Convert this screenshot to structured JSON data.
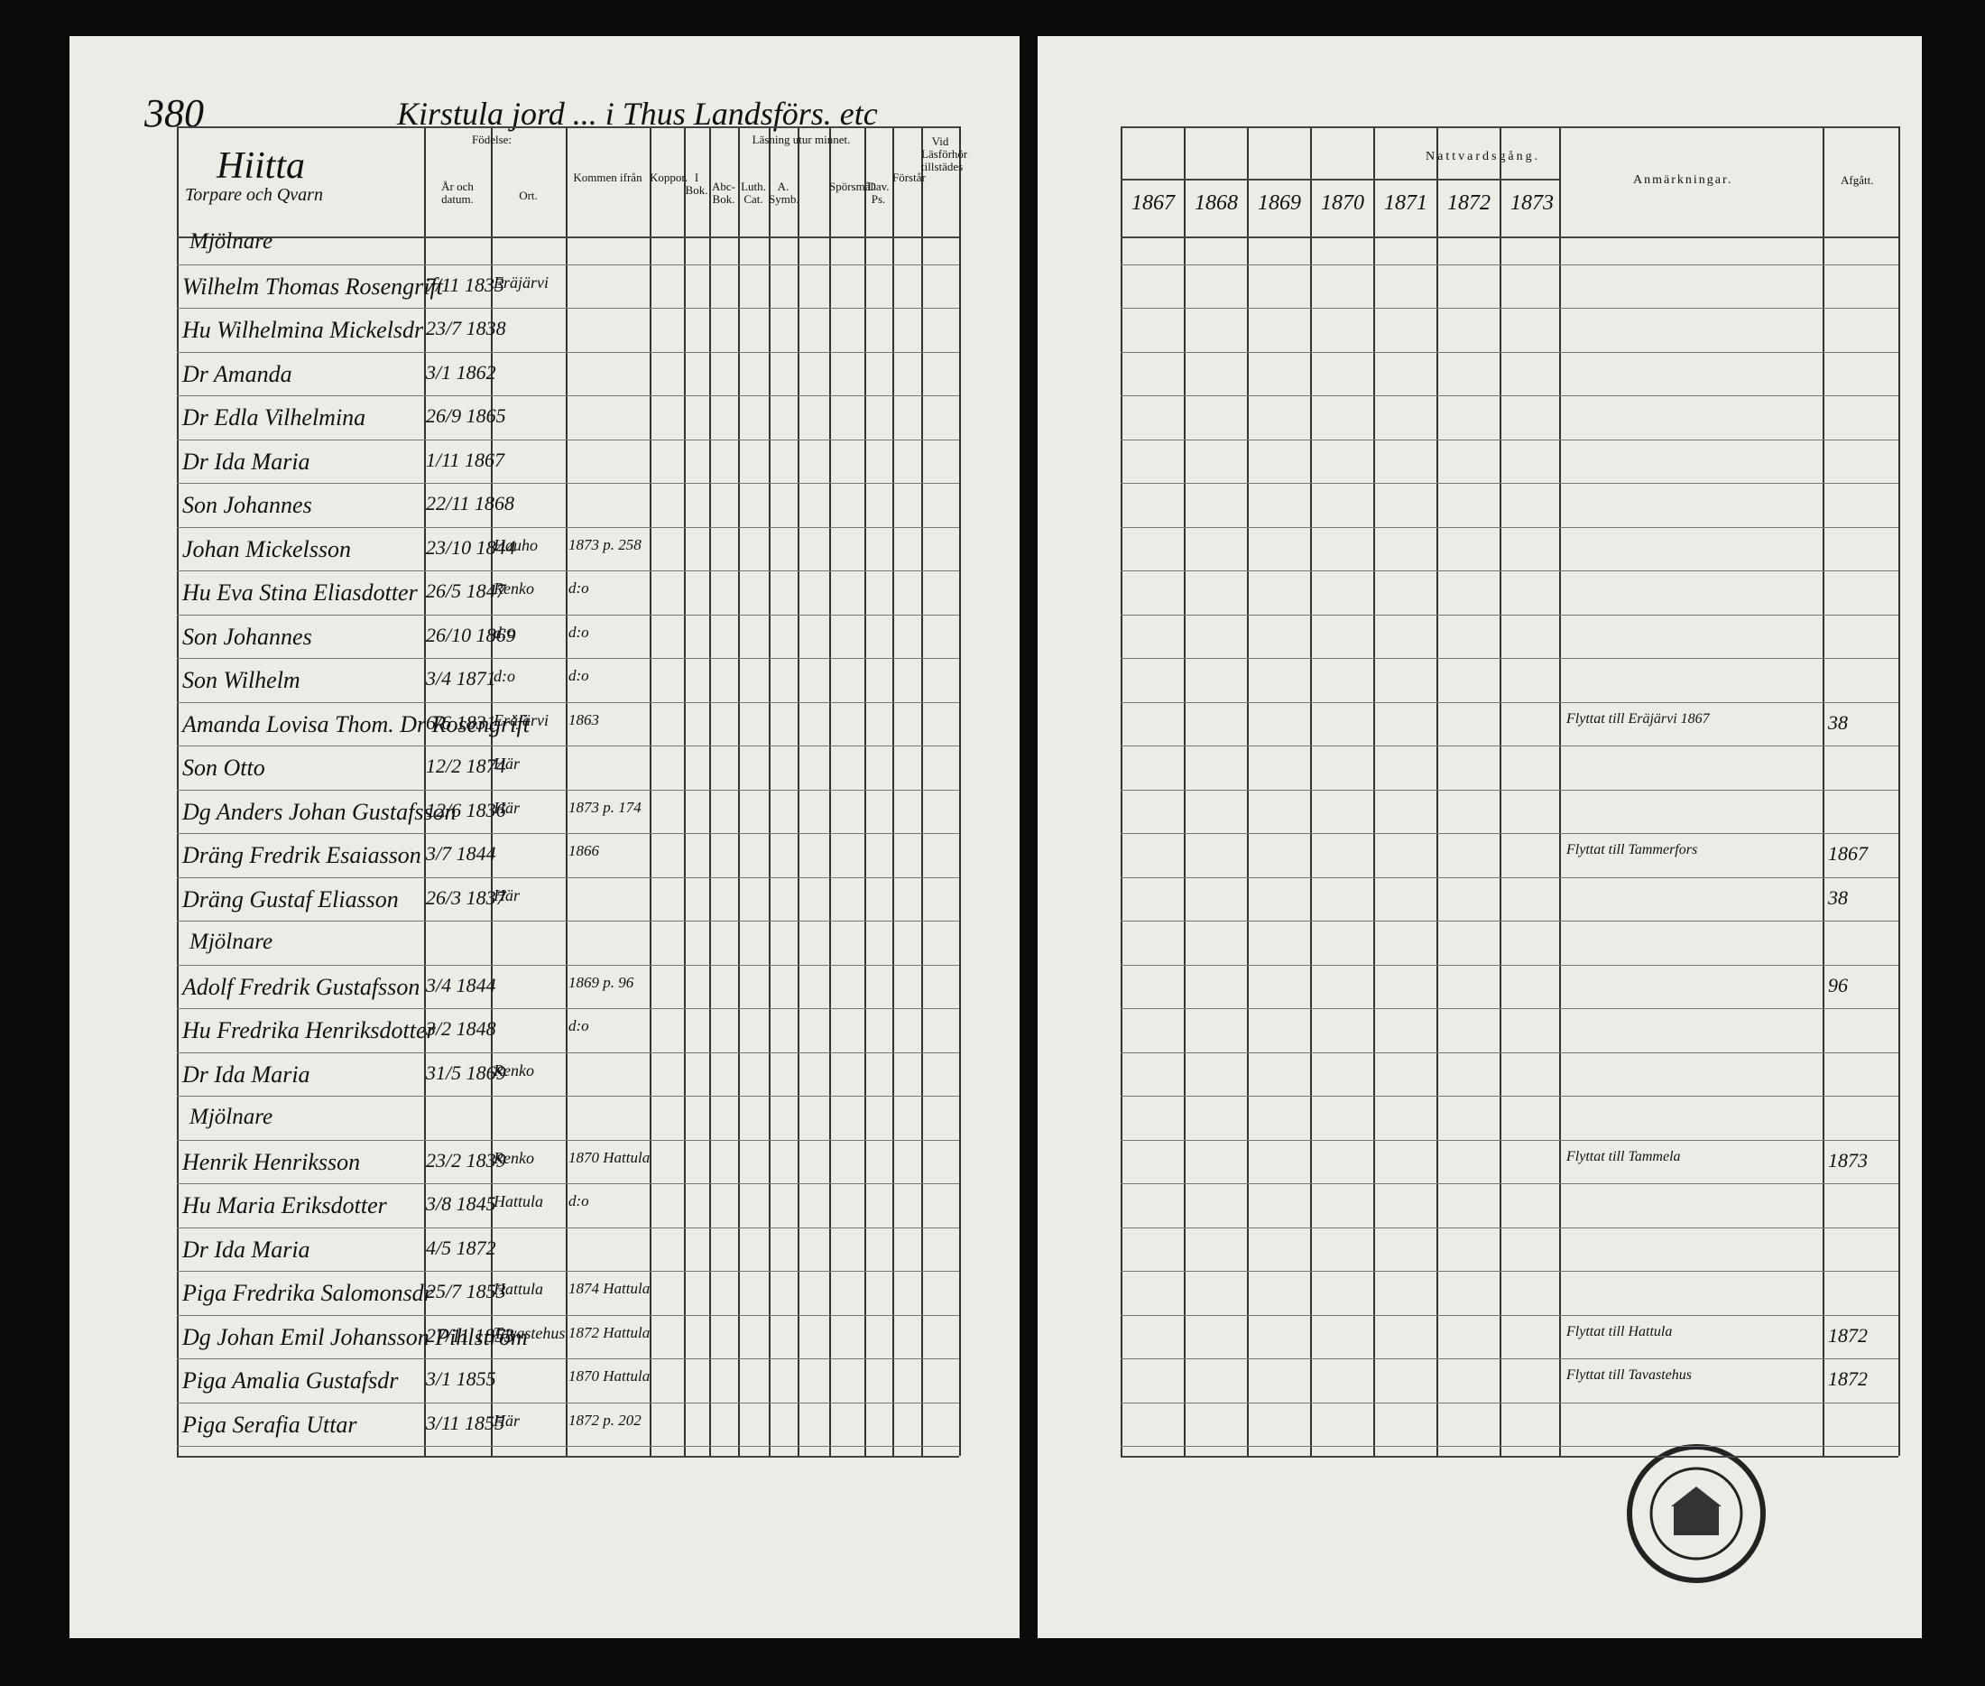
{
  "left_page": {
    "page_number": "380",
    "heading": "Kirstula jord ... i Thus Landsförs. etc",
    "place": "Hiitta",
    "subplace": "Torpare och Qvarn",
    "columns": {
      "birth": "Födelse:",
      "year_date": "År och datum.",
      "birthplace": "Ort.",
      "came_from": "Kommen ifrån",
      "pox": "Koppor.",
      "reading": "Läsning utur minnet.",
      "in_book": "I Bok.",
      "abc_book": "Abc-Bok.",
      "catechism": "Luth. Cat.",
      "symbols": "A. Symb.",
      "questions": "Spörsmål.",
      "psalms": "Dav. Ps.",
      "understands": "Förstår",
      "present": "Vid Läsförhör tillstädes"
    },
    "rows": [
      {
        "section": "Mjölnare"
      },
      {
        "name": "Wilhelm Thomas Rosengrift",
        "born": "7/11 1833",
        "place": "Eräjärvi"
      },
      {
        "name": "Hu Wilhelmina Mickelsdr",
        "born": "23/7 1838"
      },
      {
        "name": "Dr Amanda",
        "born": "3/1 1862"
      },
      {
        "name": "Dr Edla Vilhelmina",
        "born": "26/9 1865"
      },
      {
        "name": "Dr Ida Maria",
        "born": "1/11 1867"
      },
      {
        "name": "Son Johannes",
        "born": "22/11 1868"
      },
      {
        "name": "Johan Mickelsson",
        "born": "23/10 1844",
        "place": "Hauho",
        "from": "1873 p. 258"
      },
      {
        "name": "Hu Eva Stina Eliasdotter",
        "born": "26/5 1847",
        "place": "Renko",
        "from": "d:o"
      },
      {
        "name": "Son Johannes",
        "born": "26/10 1869",
        "place": "d:o",
        "from": "d:o"
      },
      {
        "name": "Son Wilhelm",
        "born": "3/4 1871",
        "place": "d:o",
        "from": "d:o"
      },
      {
        "name": "Amanda Lovisa Thom. Dr Rosengrift",
        "born": "6/6 1831",
        "place": "Eräjärvi",
        "from": "1863",
        "remark": "Flyttat till Eräjärvi 1867",
        "departed": "38"
      },
      {
        "name": "Son Otto",
        "born": "12/2 1874",
        "place": "Här"
      },
      {
        "name": "Dg Anders Johan Gustafsson",
        "born": "12/6 1836",
        "place": "Här",
        "from": "1873 p. 174"
      },
      {
        "name": "Dräng Fredrik Esaiasson",
        "born": "3/7 1844",
        "from": "1866",
        "remark": "Flyttat till Tammerfors",
        "departed": "1867"
      },
      {
        "name": "Dräng Gustaf Eliasson",
        "born": "26/3 1837",
        "place": "Här",
        "departed": "38"
      },
      {
        "section": "Mjölnare"
      },
      {
        "name": "Adolf Fredrik Gustafsson",
        "born": "3/4 1844",
        "from": "1869 p. 96",
        "departed": "96"
      },
      {
        "name": "Hu Fredrika Henriksdotter",
        "born": "3/2 1848",
        "from": "d:o"
      },
      {
        "name": "Dr Ida Maria",
        "born": "31/5 1869",
        "place": "Renko"
      },
      {
        "section": "Mjölnare"
      },
      {
        "name": "Henrik Henriksson",
        "born": "23/2 1839",
        "place": "Renko",
        "from": "1870 Hattula",
        "remark": "Flyttat till Tammela",
        "departed": "1873"
      },
      {
        "name": "Hu Maria Eriksdotter",
        "born": "3/8 1845",
        "place": "Hattula",
        "from": "d:o"
      },
      {
        "name": "Dr Ida Maria",
        "born": "4/5 1872"
      },
      {
        "name": "Piga Fredrika Salomonsdr",
        "born": "25/7 1853",
        "place": "Hattula",
        "from": "1874 Hattula"
      },
      {
        "name": "Dg Johan Emil Johansson Pihlström",
        "born": "27/11 1853",
        "place": "Tavastehus",
        "from": "1872 Hattula",
        "remark": "Flyttat till Hattula",
        "departed": "1872"
      },
      {
        "name": "Piga Amalia Gustafsdr",
        "born": "3/1 1855",
        "from": "1870 Hattula",
        "remark": "Flyttat till Tavastehus",
        "departed": "1872"
      },
      {
        "name": "Piga Serafia Uttar",
        "born": "3/11 1855",
        "place": "Här",
        "from": "1872 p. 202"
      }
    ]
  },
  "right_page": {
    "communion": "Nattvardsgång.",
    "years": [
      "1867",
      "1868",
      "1869",
      "1870",
      "1871",
      "1872",
      "1873"
    ],
    "remarks": "Anmärkningar.",
    "departed": "Afgått."
  }
}
